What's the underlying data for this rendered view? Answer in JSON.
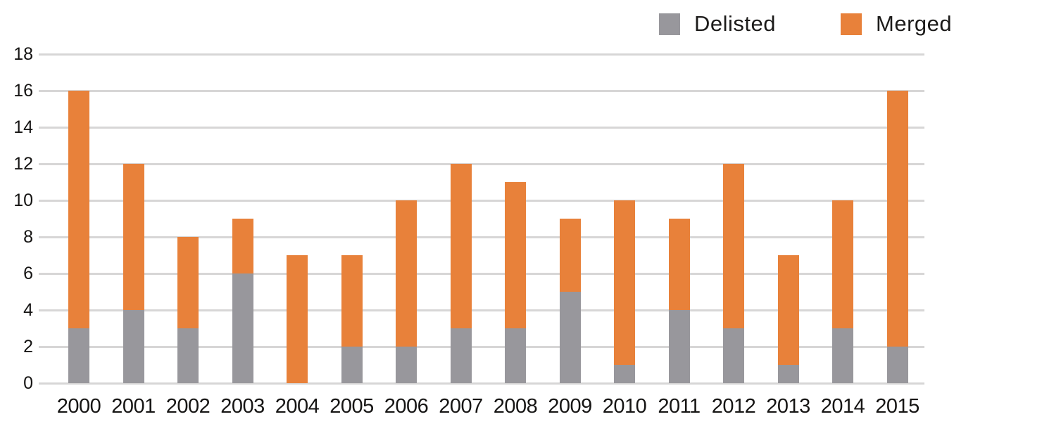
{
  "chart_data": {
    "type": "bar",
    "stacked": true,
    "title": "",
    "xlabel": "",
    "ylabel": "",
    "categories": [
      "2000",
      "2001",
      "2002",
      "2003",
      "2004",
      "2005",
      "2006",
      "2007",
      "2008",
      "2009",
      "2010",
      "2011",
      "2012",
      "2013",
      "2014",
      "2015"
    ],
    "series": [
      {
        "name": "Delisted",
        "color": "#98979c",
        "values": [
          3,
          4,
          3,
          6,
          0,
          2,
          2,
          3,
          3,
          5,
          1,
          4,
          3,
          1,
          3,
          2
        ]
      },
      {
        "name": "Merged",
        "color": "#e8813a",
        "values": [
          13,
          8,
          5,
          3,
          7,
          5,
          8,
          9,
          8,
          4,
          9,
          5,
          9,
          6,
          7,
          14
        ]
      }
    ],
    "ylim": [
      0,
      18
    ],
    "ytick_step": 2,
    "yticks": [
      "0",
      "2",
      "4",
      "6",
      "8",
      "10",
      "12",
      "14",
      "16",
      "18"
    ],
    "grid": true,
    "gridline_color": "#d7d6d6",
    "legend_position": "top-right",
    "background_color": "#ffffff",
    "text_color": "#161514"
  }
}
